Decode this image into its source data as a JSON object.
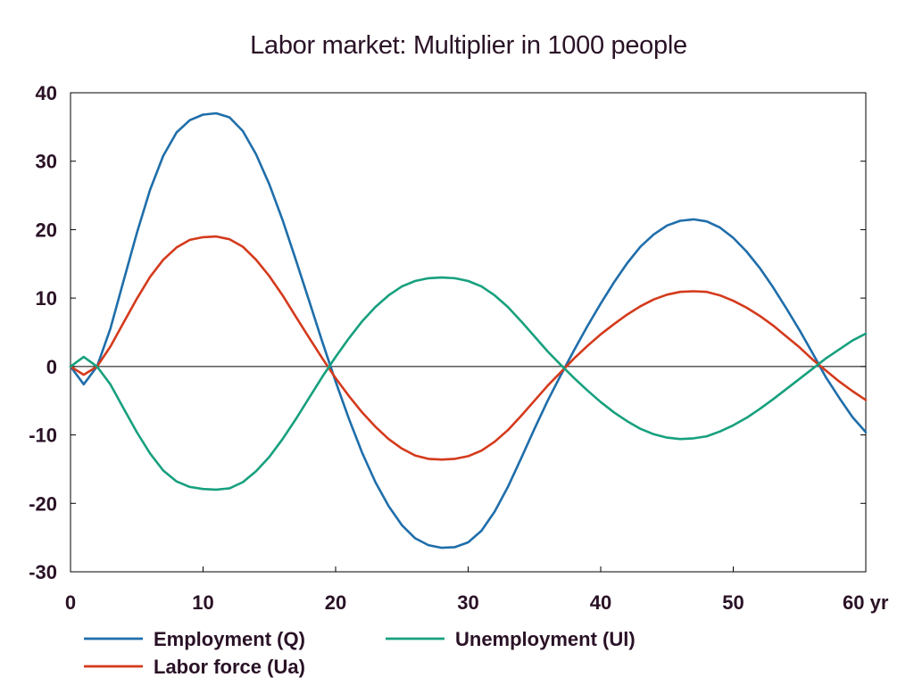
{
  "chart_data": {
    "type": "line",
    "title": "Labor market: Multiplier in 1000 people",
    "xlabel": "",
    "ylabel": "",
    "xlim": [
      0,
      60
    ],
    "ylim": [
      -30,
      40
    ],
    "x_ticks": [
      0,
      10,
      20,
      30,
      40,
      50,
      60
    ],
    "x_tick_labels": [
      "0",
      "10",
      "20",
      "30",
      "40",
      "50",
      "60 yr"
    ],
    "y_ticks": [
      40,
      30,
      20,
      10,
      0,
      -10,
      -20,
      -30
    ],
    "y_tick_labels": [
      "40",
      "30",
      "20",
      "10",
      "0",
      "-10",
      "-20",
      "-30"
    ],
    "grid": false,
    "zero_line": true,
    "legend_position": "bottom",
    "series": [
      {
        "name": "Employment (Q)",
        "color": "#1f6eaa",
        "x": [
          0,
          1,
          2,
          3,
          4,
          5,
          6,
          7,
          8,
          9,
          10,
          11,
          12,
          13,
          14,
          15,
          16,
          17,
          18,
          19,
          20,
          21,
          22,
          23,
          24,
          25,
          26,
          27,
          28,
          29,
          30,
          31,
          32,
          33,
          34,
          35,
          36,
          37,
          38,
          39,
          40,
          41,
          42,
          43,
          44,
          45,
          46,
          47,
          48,
          49,
          50,
          51,
          52,
          53,
          54,
          55,
          56,
          57,
          58,
          59,
          60
        ],
        "values": [
          0,
          -2.6,
          0,
          5.5,
          12.5,
          19.5,
          25.8,
          30.8,
          34.2,
          36.0,
          36.8,
          37.0,
          36.4,
          34.4,
          31.0,
          26.6,
          21.4,
          15.6,
          9.6,
          3.6,
          -2.2,
          -7.6,
          -12.6,
          -16.9,
          -20.4,
          -23.2,
          -25.1,
          -26.1,
          -26.5,
          -26.4,
          -25.7,
          -24.0,
          -21.2,
          -17.6,
          -13.4,
          -9.1,
          -5.0,
          -1.2,
          2.4,
          5.9,
          9.2,
          12.3,
          15.1,
          17.5,
          19.3,
          20.6,
          21.3,
          21.5,
          21.2,
          20.3,
          18.8,
          16.8,
          14.4,
          11.6,
          8.5,
          5.3,
          1.9,
          -1.6,
          -4.6,
          -7.4,
          -9.6
        ]
      },
      {
        "name": "Labor force (Ua)",
        "color": "#d43a1c",
        "x": [
          0,
          1,
          2,
          3,
          4,
          5,
          6,
          7,
          8,
          9,
          10,
          11,
          12,
          13,
          14,
          15,
          16,
          17,
          18,
          19,
          20,
          21,
          22,
          23,
          24,
          25,
          26,
          27,
          28,
          29,
          30,
          31,
          32,
          33,
          34,
          35,
          36,
          37,
          38,
          39,
          40,
          41,
          42,
          43,
          44,
          45,
          46,
          47,
          48,
          49,
          50,
          51,
          52,
          53,
          54,
          55,
          56,
          57,
          58,
          59,
          60
        ],
        "values": [
          0,
          -1.2,
          0,
          2.9,
          6.4,
          9.9,
          13.1,
          15.6,
          17.4,
          18.5,
          18.9,
          19.0,
          18.6,
          17.5,
          15.6,
          13.2,
          10.4,
          7.3,
          4.2,
          1.2,
          -1.7,
          -4.3,
          -6.7,
          -8.8,
          -10.6,
          -12.0,
          -13.0,
          -13.5,
          -13.6,
          -13.5,
          -13.1,
          -12.3,
          -11.0,
          -9.3,
          -7.2,
          -5.0,
          -2.8,
          -0.8,
          1.2,
          3.0,
          4.7,
          6.2,
          7.6,
          8.8,
          9.8,
          10.5,
          10.9,
          11.0,
          10.9,
          10.4,
          9.6,
          8.6,
          7.4,
          6.0,
          4.4,
          2.8,
          1.0,
          -0.6,
          -2.2,
          -3.6,
          -4.9
        ]
      },
      {
        "name": "Unemployment (Ul)",
        "color": "#17a07e",
        "x": [
          0,
          1,
          2,
          3,
          4,
          5,
          6,
          7,
          8,
          9,
          10,
          11,
          12,
          13,
          14,
          15,
          16,
          17,
          18,
          19,
          20,
          21,
          22,
          23,
          24,
          25,
          26,
          27,
          28,
          29,
          30,
          31,
          32,
          33,
          34,
          35,
          36,
          37,
          38,
          39,
          40,
          41,
          42,
          43,
          44,
          45,
          46,
          47,
          48,
          49,
          50,
          51,
          52,
          53,
          54,
          55,
          56,
          57,
          58,
          59,
          60
        ],
        "values": [
          0,
          1.4,
          0,
          -2.6,
          -6.1,
          -9.6,
          -12.7,
          -15.2,
          -16.8,
          -17.6,
          -17.9,
          -18.0,
          -17.8,
          -16.9,
          -15.3,
          -13.2,
          -10.6,
          -7.7,
          -4.6,
          -1.5,
          1.4,
          4.1,
          6.6,
          8.7,
          10.4,
          11.7,
          12.5,
          12.9,
          13.0,
          12.9,
          12.5,
          11.7,
          10.4,
          8.7,
          6.6,
          4.4,
          2.2,
          0.2,
          -1.7,
          -3.5,
          -5.2,
          -6.7,
          -8.0,
          -9.1,
          -9.9,
          -10.4,
          -10.6,
          -10.5,
          -10.2,
          -9.5,
          -8.6,
          -7.5,
          -6.2,
          -4.8,
          -3.3,
          -1.8,
          -0.3,
          1.2,
          2.5,
          3.8,
          4.8
        ]
      }
    ]
  }
}
